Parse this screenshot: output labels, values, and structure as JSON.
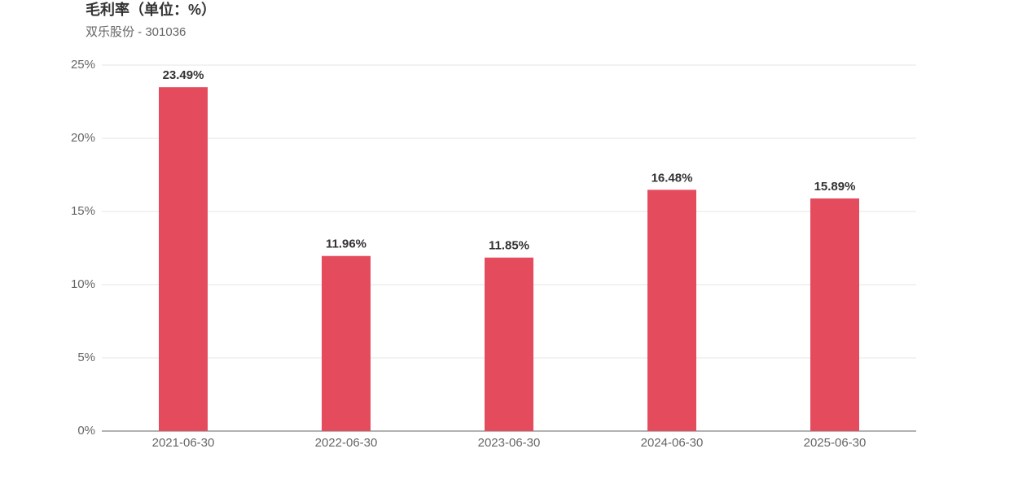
{
  "chart_data": {
    "type": "bar",
    "title": "毛利率（单位：%）",
    "subtitle": "双乐股份 - 301036",
    "categories": [
      "2021-06-30",
      "2022-06-30",
      "2023-06-30",
      "2024-06-30",
      "2025-06-30"
    ],
    "values": [
      23.49,
      11.96,
      11.85,
      16.48,
      15.89
    ],
    "value_labels": [
      "23.49%",
      "11.96%",
      "11.85%",
      "16.48%",
      "15.89%"
    ],
    "color": "#e44c5e",
    "ylim": [
      0,
      25
    ],
    "yticks": [
      {
        "value": 0,
        "label": "0%"
      },
      {
        "value": 5,
        "label": "5%"
      },
      {
        "value": 10,
        "label": "10%"
      },
      {
        "value": 15,
        "label": "15%"
      },
      {
        "value": 20,
        "label": "20%"
      },
      {
        "value": 25,
        "label": "25%"
      }
    ],
    "grid": true
  }
}
